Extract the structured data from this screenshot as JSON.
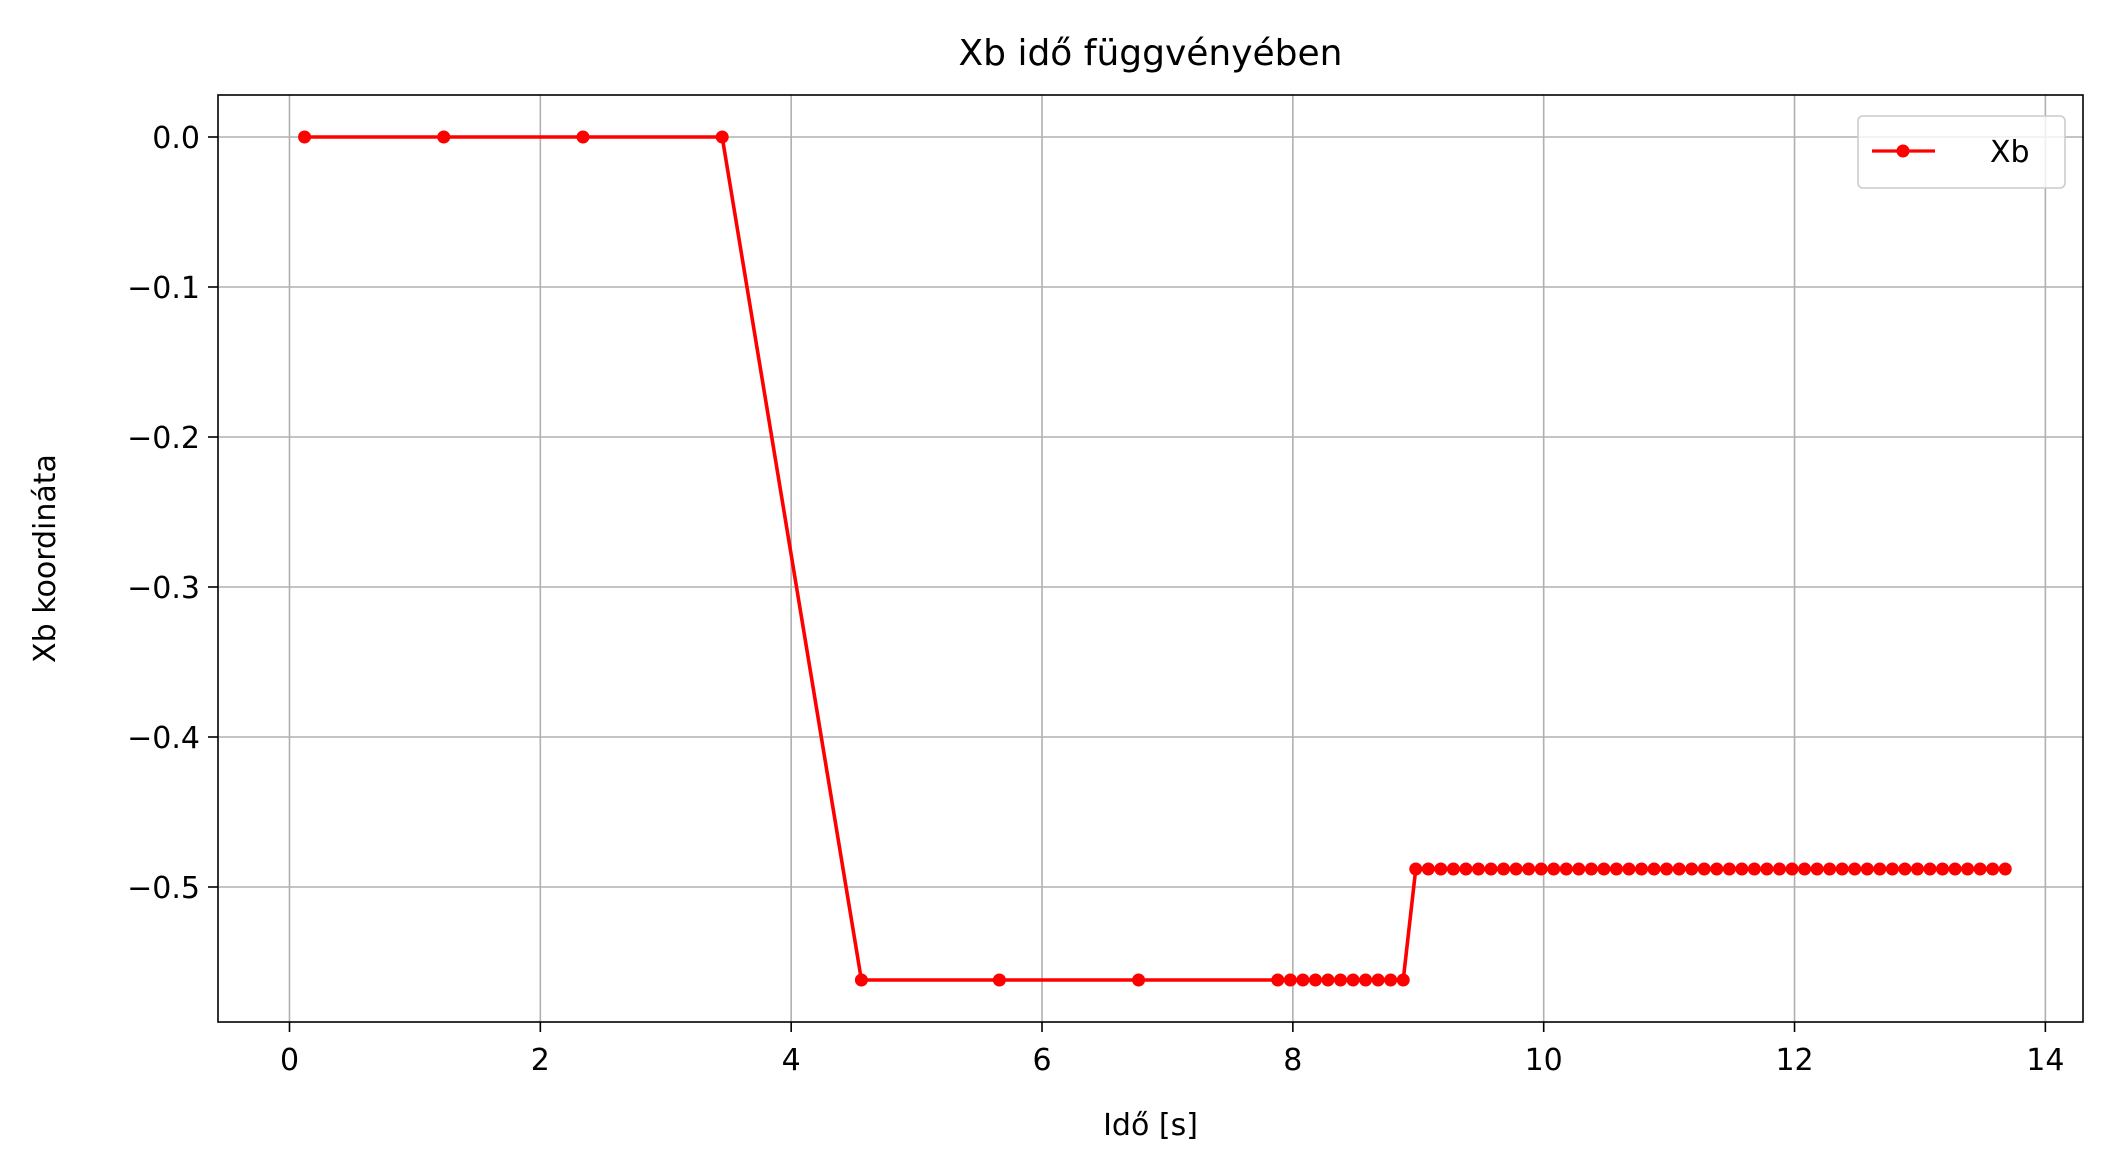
{
  "chart_data": {
    "type": "line",
    "title": "Xb idő függvényében",
    "xlabel": "Idő [s]",
    "ylabel": "Xb koordináta",
    "xlim": [
      -0.57,
      14.3
    ],
    "ylim": [
      -0.59,
      0.028
    ],
    "grid": true,
    "legend_position": "top-right",
    "x_ticks": [
      0,
      2,
      4,
      6,
      8,
      10,
      12,
      14
    ],
    "x_tick_labels": [
      "0",
      "2",
      "4",
      "6",
      "8",
      "10",
      "12",
      "14"
    ],
    "y_ticks": [
      0.0,
      -0.1,
      -0.2,
      -0.3,
      -0.4,
      -0.5
    ],
    "y_tick_labels": [
      "0.0",
      "−0.1",
      "−0.2",
      "−0.3",
      "−0.4",
      "−0.5"
    ],
    "series": [
      {
        "name": "Xb",
        "color": "#ff0000",
        "marker": "circle",
        "x": [
          0.12,
          1.23,
          2.34,
          3.45,
          4.56,
          5.66,
          6.77,
          7.88,
          7.98,
          8.08,
          8.18,
          8.28,
          8.38,
          8.48,
          8.58,
          8.68,
          8.78,
          8.88,
          8.98,
          9.08,
          9.18,
          9.28,
          9.38,
          9.48,
          9.58,
          9.68,
          9.78,
          9.88,
          9.98,
          10.08,
          10.18,
          10.28,
          10.38,
          10.48,
          10.58,
          10.68,
          10.78,
          10.88,
          10.98,
          11.08,
          11.18,
          11.28,
          11.38,
          11.48,
          11.58,
          11.68,
          11.78,
          11.88,
          11.98,
          12.08,
          12.18,
          12.28,
          12.38,
          12.48,
          12.58,
          12.68,
          12.78,
          12.88,
          12.98,
          13.08,
          13.18,
          13.28,
          13.38,
          13.48,
          13.58,
          13.68
        ],
        "y": [
          0.0,
          0.0,
          0.0,
          0.0,
          -0.562,
          -0.562,
          -0.562,
          -0.562,
          -0.562,
          -0.562,
          -0.562,
          -0.562,
          -0.562,
          -0.562,
          -0.562,
          -0.562,
          -0.562,
          -0.562,
          -0.488,
          -0.488,
          -0.488,
          -0.488,
          -0.488,
          -0.488,
          -0.488,
          -0.488,
          -0.488,
          -0.488,
          -0.488,
          -0.488,
          -0.488,
          -0.488,
          -0.488,
          -0.488,
          -0.488,
          -0.488,
          -0.488,
          -0.488,
          -0.488,
          -0.488,
          -0.488,
          -0.488,
          -0.488,
          -0.488,
          -0.488,
          -0.488,
          -0.488,
          -0.488,
          -0.488,
          -0.488,
          -0.488,
          -0.488,
          -0.488,
          -0.488,
          -0.488,
          -0.488,
          -0.488,
          -0.488,
          -0.488,
          -0.488,
          -0.488,
          -0.488,
          -0.488,
          -0.488,
          -0.488,
          -0.488
        ]
      }
    ]
  }
}
